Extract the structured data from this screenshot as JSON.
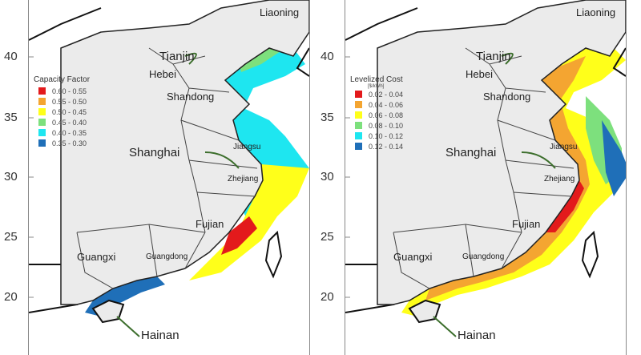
{
  "axis": {
    "lat_ticks": [
      "40",
      "35",
      "30",
      "25",
      "20"
    ]
  },
  "places": {
    "liaoning": "Liaoning",
    "tianjin": "Tianjin",
    "hebei": "Hebei",
    "shandong": "Shandong",
    "shanghai": "Shanghai",
    "jiangsu": "Jiangsu",
    "zhejiang": "Zhejiang",
    "fujian": "Fujian",
    "guangxi": "Guangxi",
    "guangdong": "Guangdong",
    "hainan": "Hainan"
  },
  "panels": [
    {
      "legend": {
        "title": "Capacity Factor",
        "unit": "",
        "items": [
          {
            "label": "0.60 - 0.55",
            "color": "#e31a1c"
          },
          {
            "label": "0.55 - 0.50",
            "color": "#f4a531"
          },
          {
            "label": "0.50 - 0.45",
            "color": "#ffff1a"
          },
          {
            "label": "0.45 - 0.40",
            "color": "#7de07d"
          },
          {
            "label": "0.40 - 0.35",
            "color": "#1ee6f0"
          },
          {
            "label": "0.35 - 0.30",
            "color": "#1f6fb8"
          }
        ]
      }
    },
    {
      "legend": {
        "title": "Levelized Cost",
        "unit": "[$/kWh]",
        "items": [
          {
            "label": "0.02 - 0.04",
            "color": "#e31a1c"
          },
          {
            "label": "0.04 - 0.06",
            "color": "#f4a531"
          },
          {
            "label": "0.06 - 0.08",
            "color": "#ffff1a"
          },
          {
            "label": "0.08 - 0.10",
            "color": "#7de07d"
          },
          {
            "label": "0.10 - 0.12",
            "color": "#1ee6f0"
          },
          {
            "label": "0.12 - 0.14",
            "color": "#1f6fb8"
          }
        ]
      }
    }
  ]
}
